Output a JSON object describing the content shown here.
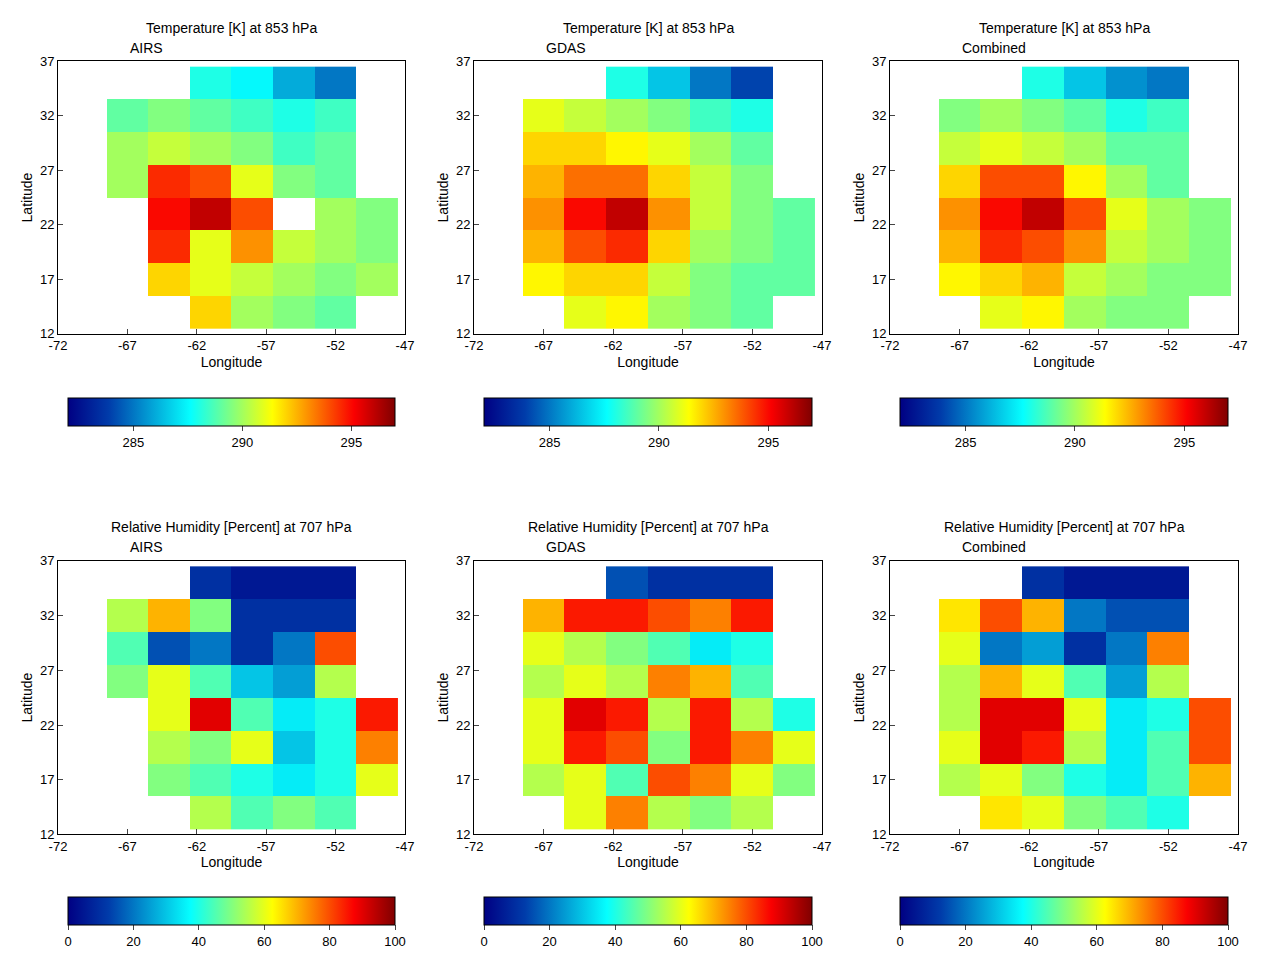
{
  "chart_data": [
    {
      "type": "heatmap",
      "title": "Temperature [K] at 853 hPa",
      "subtitle": "AIRS",
      "x_label": "Longitude",
      "y_label": "Latitude",
      "x": [
        -70,
        -67,
        -64,
        -61,
        -58,
        -55,
        -52,
        -49
      ],
      "y": [
        14,
        17,
        20,
        23,
        26,
        29,
        32,
        35
      ],
      "z": [
        [
          null,
          null,
          null,
          292,
          290,
          289.5,
          289,
          null
        ],
        [
          null,
          null,
          292,
          291,
          290.5,
          290,
          289.5,
          290
        ],
        [
          null,
          null,
          294.5,
          291,
          293,
          290.5,
          290,
          289.5
        ],
        [
          null,
          null,
          295,
          296,
          294,
          null,
          290,
          289.5
        ],
        [
          null,
          290,
          294.5,
          294,
          291,
          289.5,
          289,
          null
        ],
        [
          null,
          290,
          290.5,
          290,
          289.5,
          288.5,
          289,
          null
        ],
        [
          null,
          289,
          289.5,
          289,
          288.5,
          288,
          288.5,
          null
        ],
        [
          null,
          null,
          null,
          288,
          287.5,
          286,
          285,
          null
        ]
      ],
      "xlim": [
        -72,
        -47
      ],
      "xticks": [
        -72,
        -67,
        -62,
        -57,
        -52,
        -47
      ],
      "ylim": [
        12,
        37
      ],
      "yticks": [
        12,
        17,
        22,
        27,
        32,
        37
      ],
      "colorbar_range": [
        282,
        297
      ],
      "colorbar_ticks": [
        285,
        290,
        295
      ]
    },
    {
      "type": "heatmap",
      "title": "Temperature [K] at 853 hPa",
      "subtitle": "GDAS",
      "x_label": "Longitude",
      "y_label": "Latitude",
      "x": [
        -70,
        -67,
        -64,
        -61,
        -58,
        -55,
        -52,
        -49
      ],
      "y": [
        14,
        17,
        20,
        23,
        26,
        29,
        32,
        35
      ],
      "z": [
        [
          null,
          null,
          291,
          291.5,
          290,
          289.5,
          289,
          null
        ],
        [
          null,
          291.5,
          292,
          292,
          290.5,
          289.5,
          289,
          289
        ],
        [
          null,
          292.5,
          294,
          294.5,
          292,
          290,
          289.5,
          289
        ],
        [
          null,
          293,
          295,
          296,
          293,
          290.5,
          289.5,
          289
        ],
        [
          null,
          292.5,
          293.5,
          293.5,
          292,
          290.5,
          289.5,
          null
        ],
        [
          null,
          292,
          292,
          291.5,
          291,
          290,
          289,
          null
        ],
        [
          null,
          291,
          290.5,
          290,
          289.5,
          288.5,
          288,
          null
        ],
        [
          null,
          null,
          null,
          288,
          286.5,
          285,
          284,
          null
        ]
      ],
      "xlim": [
        -72,
        -47
      ],
      "xticks": [
        -72,
        -67,
        -62,
        -57,
        -52,
        -47
      ],
      "ylim": [
        12,
        37
      ],
      "yticks": [
        12,
        17,
        22,
        27,
        32,
        37
      ],
      "colorbar_range": [
        282,
        297
      ],
      "colorbar_ticks": [
        285,
        290,
        295
      ]
    },
    {
      "type": "heatmap",
      "title": "Temperature [K] at 853 hPa",
      "subtitle": "Combined",
      "x_label": "Longitude",
      "y_label": "Latitude",
      "x": [
        -70,
        -67,
        -64,
        -61,
        -58,
        -55,
        -52,
        -49
      ],
      "y": [
        14,
        17,
        20,
        23,
        26,
        29,
        32,
        35
      ],
      "z": [
        [
          null,
          null,
          291,
          291.5,
          290,
          289.5,
          289.5,
          null
        ],
        [
          null,
          291.5,
          292,
          292.5,
          290.5,
          290,
          289.5,
          289.5
        ],
        [
          null,
          292.5,
          294.5,
          294,
          293,
          290.5,
          290,
          289.5
        ],
        [
          null,
          293,
          295,
          296,
          294,
          291,
          290,
          289.5
        ],
        [
          null,
          292,
          294,
          294,
          291.5,
          290,
          289,
          null
        ],
        [
          null,
          290.5,
          291,
          290.5,
          290,
          289,
          289,
          null
        ],
        [
          null,
          289.5,
          290,
          289.5,
          289,
          288,
          288.5,
          null
        ],
        [
          null,
          null,
          null,
          288,
          286.5,
          285.5,
          285,
          null
        ]
      ],
      "xlim": [
        -72,
        -47
      ],
      "xticks": [
        -72,
        -67,
        -62,
        -57,
        -52,
        -47
      ],
      "ylim": [
        12,
        37
      ],
      "yticks": [
        12,
        17,
        22,
        27,
        32,
        37
      ],
      "colorbar_range": [
        282,
        297
      ],
      "colorbar_ticks": [
        285,
        290,
        295
      ]
    },
    {
      "type": "heatmap",
      "title": "Relative Humidity [Percent] at 707 hPa",
      "subtitle": "AIRS",
      "x_label": "Longitude",
      "y_label": "Latitude",
      "x": [
        -70,
        -67,
        -64,
        -61,
        -58,
        -55,
        -52,
        -49
      ],
      "y": [
        14,
        17,
        20,
        23,
        26,
        29,
        32,
        35
      ],
      "z": [
        [
          null,
          null,
          null,
          55,
          45,
          50,
          45,
          null
        ],
        [
          null,
          null,
          50,
          45,
          40,
          35,
          40,
          60
        ],
        [
          null,
          null,
          55,
          50,
          60,
          30,
          40,
          75
        ],
        [
          null,
          null,
          60,
          90,
          45,
          35,
          40,
          85
        ],
        [
          null,
          50,
          60,
          45,
          30,
          25,
          55,
          null
        ],
        [
          null,
          45,
          15,
          20,
          10,
          20,
          80,
          null
        ],
        [
          null,
          55,
          70,
          50,
          10,
          10,
          10,
          null
        ],
        [
          null,
          null,
          null,
          10,
          5,
          5,
          5,
          null
        ]
      ],
      "xlim": [
        -72,
        -47
      ],
      "xticks": [
        -72,
        -67,
        -62,
        -57,
        -52,
        -47
      ],
      "ylim": [
        12,
        37
      ],
      "yticks": [
        12,
        17,
        22,
        27,
        32,
        37
      ],
      "colorbar_range": [
        0,
        100
      ],
      "colorbar_ticks": [
        0,
        20,
        40,
        60,
        80,
        100
      ]
    },
    {
      "type": "heatmap",
      "title": "Relative Humidity [Percent] at 707 hPa",
      "subtitle": "GDAS",
      "x_label": "Longitude",
      "y_label": "Latitude",
      "x": [
        -70,
        -67,
        -64,
        -61,
        -58,
        -55,
        -52,
        -49
      ],
      "y": [
        14,
        17,
        20,
        23,
        26,
        29,
        32,
        35
      ],
      "z": [
        [
          null,
          null,
          60,
          75,
          55,
          50,
          55,
          null
        ],
        [
          null,
          55,
          60,
          45,
          80,
          75,
          60,
          50
        ],
        [
          null,
          60,
          85,
          80,
          50,
          85,
          75,
          60
        ],
        [
          null,
          60,
          90,
          85,
          55,
          85,
          55,
          40
        ],
        [
          null,
          55,
          60,
          55,
          75,
          70,
          45,
          null
        ],
        [
          null,
          60,
          55,
          50,
          45,
          35,
          40,
          null
        ],
        [
          null,
          70,
          85,
          85,
          80,
          75,
          85,
          null
        ],
        [
          null,
          null,
          null,
          15,
          10,
          10,
          10,
          null
        ]
      ],
      "xlim": [
        -72,
        -47
      ],
      "xticks": [
        -72,
        -67,
        -62,
        -57,
        -52,
        -47
      ],
      "ylim": [
        12,
        37
      ],
      "yticks": [
        12,
        17,
        22,
        27,
        32,
        37
      ],
      "colorbar_range": [
        0,
        100
      ],
      "colorbar_ticks": [
        0,
        20,
        40,
        60,
        80,
        100
      ]
    },
    {
      "type": "heatmap",
      "title": "Relative Humidity [Percent] at 707 hPa",
      "subtitle": "Combined",
      "x_label": "Longitude",
      "y_label": "Latitude",
      "x": [
        -70,
        -67,
        -64,
        -61,
        -58,
        -55,
        -52,
        -49
      ],
      "y": [
        14,
        17,
        20,
        23,
        26,
        29,
        32,
        35
      ],
      "z": [
        [
          null,
          null,
          65,
          60,
          50,
          45,
          40,
          null
        ],
        [
          null,
          55,
          60,
          50,
          40,
          35,
          45,
          70
        ],
        [
          null,
          60,
          90,
          85,
          55,
          35,
          45,
          80
        ],
        [
          null,
          55,
          90,
          90,
          60,
          35,
          40,
          80
        ],
        [
          null,
          55,
          70,
          60,
          45,
          25,
          55,
          null
        ],
        [
          null,
          60,
          20,
          25,
          10,
          20,
          75,
          null
        ],
        [
          null,
          65,
          80,
          70,
          20,
          15,
          15,
          null
        ],
        [
          null,
          null,
          null,
          10,
          5,
          5,
          5,
          null
        ]
      ],
      "xlim": [
        -72,
        -47
      ],
      "xticks": [
        -72,
        -67,
        -62,
        -57,
        -52,
        -47
      ],
      "ylim": [
        12,
        37
      ],
      "yticks": [
        12,
        17,
        22,
        27,
        32,
        37
      ],
      "colorbar_range": [
        0,
        100
      ],
      "colorbar_ticks": [
        0,
        20,
        40,
        60,
        80,
        100
      ]
    }
  ]
}
